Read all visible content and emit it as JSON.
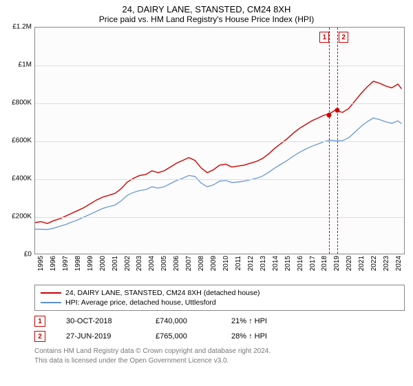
{
  "title": "24, DAIRY LANE, STANSTED, CM24 8XH",
  "subtitle": "Price paid vs. HM Land Registry's House Price Index (HPI)",
  "chart": {
    "type": "line",
    "background_color": "#fcfcfc",
    "border_color": "#888888",
    "grid_color": "#dddddd",
    "ylim_min": 0,
    "ylim_max": 1200000,
    "ytick_step": 200000,
    "yticks": [
      {
        "v": 0,
        "label": "£0"
      },
      {
        "v": 200000,
        "label": "£200K"
      },
      {
        "v": 400000,
        "label": "£400K"
      },
      {
        "v": 600000,
        "label": "£600K"
      },
      {
        "v": 800000,
        "label": "£800K"
      },
      {
        "v": 1000000,
        "label": "£1M"
      },
      {
        "v": 1200000,
        "label": "£1.2M"
      }
    ],
    "x_min": 1995,
    "x_max": 2025,
    "xticks": [
      1995,
      1996,
      1997,
      1998,
      1999,
      2000,
      2001,
      2002,
      2003,
      2004,
      2005,
      2006,
      2007,
      2008,
      2009,
      2010,
      2011,
      2012,
      2013,
      2014,
      2015,
      2016,
      2017,
      2018,
      2019,
      2020,
      2021,
      2022,
      2023,
      2024
    ],
    "series": [
      {
        "name": "24, DAIRY LANE, STANSTED, CM24 8XH (detached house)",
        "color": "#cc0000",
        "width": 1.4,
        "points": [
          [
            1995.0,
            165000
          ],
          [
            1995.5,
            170000
          ],
          [
            1996.0,
            160000
          ],
          [
            1996.5,
            175000
          ],
          [
            1997.0,
            185000
          ],
          [
            1997.5,
            200000
          ],
          [
            1998.0,
            215000
          ],
          [
            1998.5,
            230000
          ],
          [
            1999.0,
            245000
          ],
          [
            1999.5,
            265000
          ],
          [
            2000.0,
            285000
          ],
          [
            2000.5,
            300000
          ],
          [
            2001.0,
            310000
          ],
          [
            2001.5,
            320000
          ],
          [
            2002.0,
            345000
          ],
          [
            2002.5,
            380000
          ],
          [
            2003.0,
            400000
          ],
          [
            2003.5,
            415000
          ],
          [
            2004.0,
            420000
          ],
          [
            2004.5,
            440000
          ],
          [
            2005.0,
            430000
          ],
          [
            2005.5,
            440000
          ],
          [
            2006.0,
            460000
          ],
          [
            2006.5,
            480000
          ],
          [
            2007.0,
            495000
          ],
          [
            2007.5,
            510000
          ],
          [
            2008.0,
            495000
          ],
          [
            2008.5,
            455000
          ],
          [
            2009.0,
            430000
          ],
          [
            2009.5,
            445000
          ],
          [
            2010.0,
            470000
          ],
          [
            2010.5,
            475000
          ],
          [
            2011.0,
            460000
          ],
          [
            2011.5,
            465000
          ],
          [
            2012.0,
            470000
          ],
          [
            2012.5,
            480000
          ],
          [
            2013.0,
            490000
          ],
          [
            2013.5,
            505000
          ],
          [
            2014.0,
            530000
          ],
          [
            2014.5,
            560000
          ],
          [
            2015.0,
            585000
          ],
          [
            2015.5,
            610000
          ],
          [
            2016.0,
            640000
          ],
          [
            2016.5,
            665000
          ],
          [
            2017.0,
            685000
          ],
          [
            2017.5,
            705000
          ],
          [
            2018.0,
            720000
          ],
          [
            2018.5,
            735000
          ],
          [
            2018.83,
            740000
          ],
          [
            2019.0,
            745000
          ],
          [
            2019.49,
            765000
          ],
          [
            2019.7,
            755000
          ],
          [
            2020.0,
            750000
          ],
          [
            2020.5,
            770000
          ],
          [
            2021.0,
            810000
          ],
          [
            2021.5,
            850000
          ],
          [
            2022.0,
            885000
          ],
          [
            2022.5,
            915000
          ],
          [
            2023.0,
            905000
          ],
          [
            2023.5,
            890000
          ],
          [
            2024.0,
            880000
          ],
          [
            2024.5,
            900000
          ],
          [
            2024.8,
            875000
          ]
        ]
      },
      {
        "name": "HPI: Average price, detached house, Uttlesford",
        "color": "#5b8fd6",
        "width": 1.2,
        "points": [
          [
            1995.0,
            130000
          ],
          [
            1995.5,
            130000
          ],
          [
            1996.0,
            128000
          ],
          [
            1996.5,
            135000
          ],
          [
            1997.0,
            145000
          ],
          [
            1997.5,
            155000
          ],
          [
            1998.0,
            168000
          ],
          [
            1998.5,
            180000
          ],
          [
            1999.0,
            195000
          ],
          [
            1999.5,
            210000
          ],
          [
            2000.0,
            225000
          ],
          [
            2000.5,
            240000
          ],
          [
            2001.0,
            250000
          ],
          [
            2001.5,
            258000
          ],
          [
            2002.0,
            280000
          ],
          [
            2002.5,
            310000
          ],
          [
            2003.0,
            325000
          ],
          [
            2003.5,
            335000
          ],
          [
            2004.0,
            340000
          ],
          [
            2004.5,
            355000
          ],
          [
            2005.0,
            348000
          ],
          [
            2005.5,
            355000
          ],
          [
            2006.0,
            372000
          ],
          [
            2006.5,
            388000
          ],
          [
            2007.0,
            400000
          ],
          [
            2007.5,
            415000
          ],
          [
            2008.0,
            410000
          ],
          [
            2008.5,
            375000
          ],
          [
            2009.0,
            355000
          ],
          [
            2009.5,
            365000
          ],
          [
            2010.0,
            385000
          ],
          [
            2010.5,
            388000
          ],
          [
            2011.0,
            378000
          ],
          [
            2011.5,
            380000
          ],
          [
            2012.0,
            385000
          ],
          [
            2012.5,
            392000
          ],
          [
            2013.0,
            400000
          ],
          [
            2013.5,
            412000
          ],
          [
            2014.0,
            432000
          ],
          [
            2014.5,
            455000
          ],
          [
            2015.0,
            475000
          ],
          [
            2015.5,
            495000
          ],
          [
            2016.0,
            518000
          ],
          [
            2016.5,
            538000
          ],
          [
            2017.0,
            555000
          ],
          [
            2017.5,
            570000
          ],
          [
            2018.0,
            582000
          ],
          [
            2018.5,
            595000
          ],
          [
            2019.0,
            602000
          ],
          [
            2019.5,
            598000
          ],
          [
            2020.0,
            600000
          ],
          [
            2020.5,
            615000
          ],
          [
            2021.0,
            645000
          ],
          [
            2021.5,
            675000
          ],
          [
            2022.0,
            700000
          ],
          [
            2022.5,
            720000
          ],
          [
            2023.0,
            712000
          ],
          [
            2023.5,
            700000
          ],
          [
            2024.0,
            692000
          ],
          [
            2024.5,
            705000
          ],
          [
            2024.8,
            690000
          ]
        ]
      }
    ],
    "markers": [
      {
        "id": "1",
        "x": 2018.83,
        "y": 740000,
        "color": "#cc0000"
      },
      {
        "id": "2",
        "x": 2019.49,
        "y": 765000,
        "color": "#cc0000"
      }
    ]
  },
  "legend": {
    "items": [
      {
        "color": "#cc0000",
        "label": "24, DAIRY LANE, STANSTED, CM24 8XH (detached house)"
      },
      {
        "color": "#5b8fd6",
        "label": "HPI: Average price, detached house, Uttlesford"
      }
    ]
  },
  "transactions": [
    {
      "id": "1",
      "date": "30-OCT-2018",
      "price": "£740,000",
      "diff": "21% ↑ HPI"
    },
    {
      "id": "2",
      "date": "27-JUN-2019",
      "price": "£765,000",
      "diff": "28% ↑ HPI"
    }
  ],
  "footer": {
    "line1": "Contains HM Land Registry data © Crown copyright and database right 2024.",
    "line2": "This data is licensed under the Open Government Licence v3.0."
  }
}
